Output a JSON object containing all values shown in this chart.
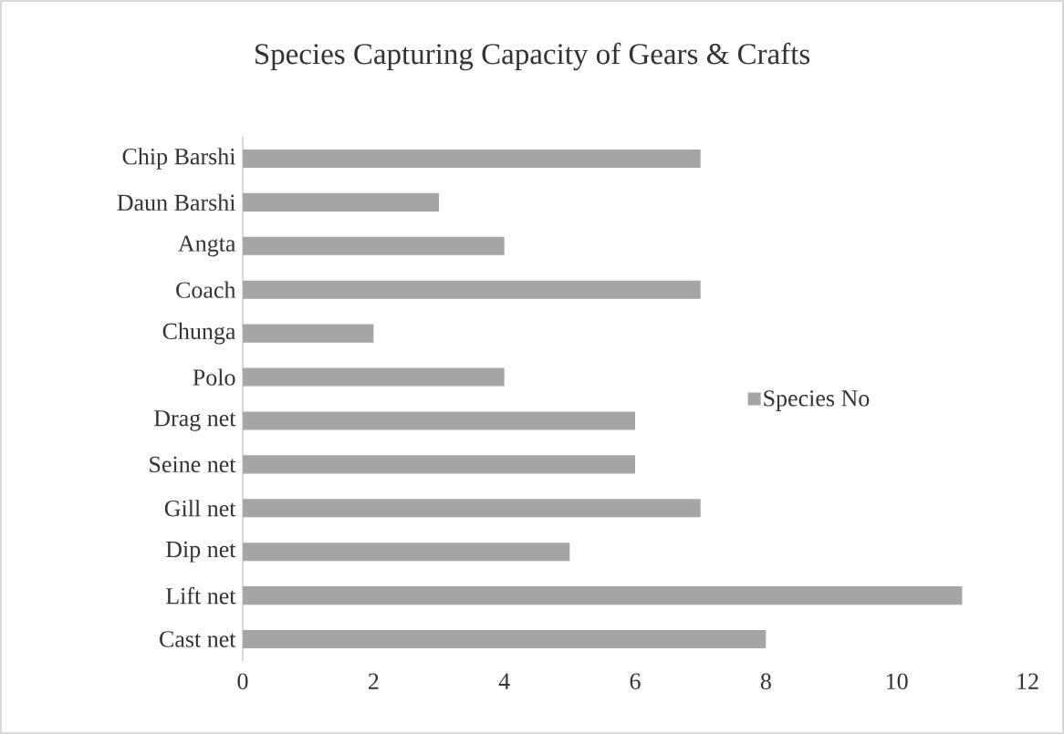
{
  "chart_data": {
    "type": "bar",
    "orientation": "horizontal",
    "title": "Species Capturing Capacity of Gears & Crafts",
    "categories": [
      "Chip Barshi",
      "Daun Barshi",
      "Angta",
      "Coach",
      "Chunga",
      "Polo",
      "Drag net",
      "Seine net",
      "Gill net",
      "Dip net",
      "Lift net",
      "Cast net"
    ],
    "series": [
      {
        "name": "Species No",
        "color": "#a5a5a5",
        "values": [
          7,
          3,
          4,
          7,
          2,
          4,
          6,
          6,
          7,
          5,
          11,
          8
        ]
      }
    ],
    "xlim": [
      0,
      12
    ],
    "xticks": [
      0,
      2,
      4,
      6,
      8,
      10,
      12
    ],
    "legend": "right"
  }
}
